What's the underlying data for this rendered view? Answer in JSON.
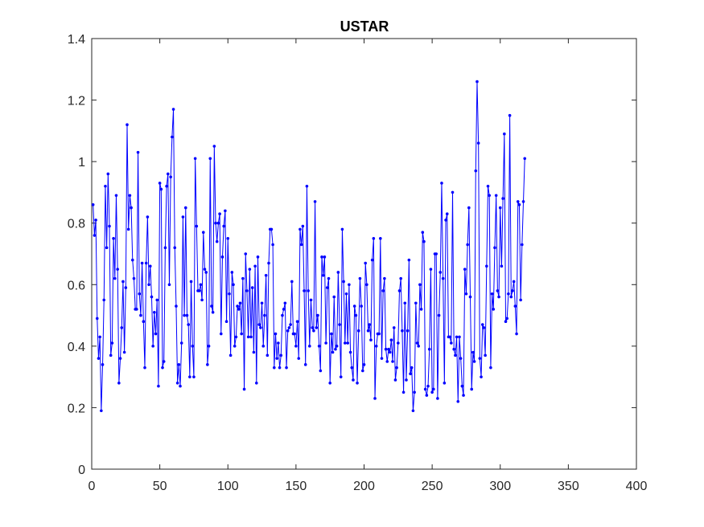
{
  "chart_data": {
    "type": "line",
    "title": "USTAR",
    "xlabel": "",
    "ylabel": "",
    "xlim": [
      0,
      400
    ],
    "ylim": [
      0,
      1.4
    ],
    "xticks": [
      "0",
      "50",
      "100",
      "150",
      "200",
      "250",
      "300",
      "350",
      "400"
    ],
    "yticks": [
      "0",
      "0.2",
      "0.4",
      "0.6",
      "0.8",
      "1",
      "1.2",
      "1.4"
    ],
    "grid": false,
    "legend": "none",
    "series": [
      {
        "color": "#0000ff",
        "marker": "dot",
        "x_start": 1,
        "x_step": 1,
        "values": [
          0.86,
          0.76,
          0.81,
          0.49,
          0.36,
          0.43,
          0.19,
          0.34,
          0.55,
          0.92,
          0.72,
          0.96,
          0.79,
          0.37,
          0.41,
          0.75,
          0.62,
          0.89,
          0.65,
          0.28,
          0.36,
          0.46,
          0.61,
          0.38,
          0.59,
          1.12,
          0.78,
          0.89,
          0.85,
          0.68,
          0.62,
          0.52,
          0.52,
          1.03,
          0.57,
          0.5,
          0.67,
          0.48,
          0.33,
          0.67,
          0.82,
          0.6,
          0.66,
          0.56,
          0.4,
          0.51,
          0.44,
          0.55,
          0.27,
          0.93,
          0.91,
          0.33,
          0.35,
          0.72,
          0.92,
          0.96,
          0.6,
          0.95,
          1.08,
          1.17,
          0.72,
          0.53,
          0.28,
          0.34,
          0.27,
          0.41,
          0.82,
          0.5,
          0.85,
          0.5,
          0.47,
          0.3,
          0.61,
          0.4,
          0.3,
          1.01,
          0.79,
          0.58,
          0.58,
          0.6,
          0.55,
          0.77,
          0.65,
          0.64,
          0.34,
          0.4,
          1.01,
          0.53,
          0.51,
          1.05,
          0.8,
          0.74,
          0.8,
          0.83,
          0.44,
          0.69,
          0.79,
          0.84,
          0.48,
          0.75,
          0.57,
          0.37,
          0.64,
          0.6,
          0.4,
          0.43,
          0.53,
          0.52,
          0.54,
          0.44,
          0.62,
          0.26,
          0.7,
          0.58,
          0.43,
          0.65,
          0.43,
          0.59,
          0.38,
          0.66,
          0.28,
          0.69,
          0.47,
          0.46,
          0.54,
          0.4,
          0.5,
          0.63,
          0.37,
          0.67,
          0.78,
          0.78,
          0.73,
          0.33,
          0.44,
          0.36,
          0.41,
          0.33,
          0.37,
          0.5,
          0.52,
          0.54,
          0.33,
          0.45,
          0.46,
          0.47,
          0.61,
          0.44,
          0.44,
          0.4,
          0.48,
          0.36,
          0.78,
          0.73,
          0.79,
          0.58,
          0.34,
          0.92,
          0.58,
          0.4,
          0.55,
          0.46,
          0.45,
          0.87,
          0.46,
          0.5,
          0.4,
          0.32,
          0.69,
          0.63,
          0.69,
          0.41,
          0.59,
          0.62,
          0.28,
          0.44,
          0.38,
          0.56,
          0.39,
          0.4,
          0.64,
          0.47,
          0.3,
          0.78,
          0.61,
          0.41,
          0.57,
          0.41,
          0.6,
          0.38,
          0.33,
          0.29,
          0.53,
          0.5,
          0.28,
          0.45,
          0.62,
          0.53,
          0.32,
          0.34,
          0.67,
          0.6,
          0.45,
          0.47,
          0.42,
          0.68,
          0.75,
          0.23,
          0.4,
          0.44,
          0.44,
          0.75,
          0.36,
          0.58,
          0.62,
          0.39,
          0.35,
          0.39,
          0.38,
          0.42,
          0.35,
          0.46,
          0.29,
          0.33,
          0.41,
          0.58,
          0.62,
          0.45,
          0.25,
          0.54,
          0.29,
          0.45,
          0.68,
          0.31,
          0.33,
          0.19,
          0.25,
          0.54,
          0.41,
          0.4,
          0.6,
          0.52,
          0.77,
          0.74,
          0.26,
          0.24,
          0.27,
          0.39,
          0.65,
          0.25,
          0.26,
          0.7,
          0.7,
          0.23,
          0.5,
          0.64,
          0.93,
          0.62,
          0.28,
          0.81,
          0.83,
          0.43,
          0.43,
          0.41,
          0.9,
          0.39,
          0.37,
          0.43,
          0.22,
          0.43,
          0.36,
          0.27,
          0.24,
          0.65,
          0.57,
          0.73,
          0.85,
          0.56,
          0.26,
          0.38,
          0.35,
          0.97,
          1.26,
          1.06,
          0.36,
          0.3,
          0.47,
          0.46,
          0.37,
          0.66,
          0.92,
          0.89,
          0.33,
          0.57,
          0.52,
          0.72,
          0.89,
          0.58,
          0.56,
          0.85,
          0.66,
          0.88,
          1.09,
          0.48,
          0.49,
          0.57,
          1.15,
          0.56,
          0.58,
          0.61,
          0.53,
          0.44,
          0.87,
          0.86,
          0.55,
          0.73,
          0.87,
          1.01
        ]
      }
    ]
  }
}
